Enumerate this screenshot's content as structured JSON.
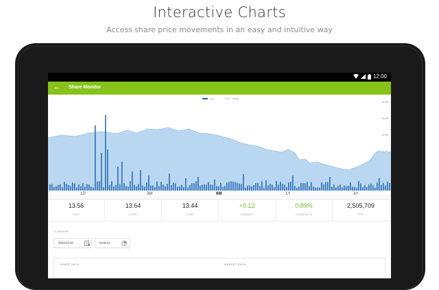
{
  "headline": "Interactive Charts",
  "subheadline": "Access share price movements in an easy and intuitive way",
  "status_bar": {
    "time": "12:00",
    "icons": [
      "wifi-icon",
      "signal-icon",
      "battery-icon"
    ]
  },
  "app_bar": {
    "title": "Share Monitor",
    "accent_color": "#86c21a"
  },
  "chart": {
    "legend": [
      "Vol",
      "Price"
    ],
    "y_ticks": [
      "14.00",
      "13.00",
      "12.00",
      "11.00",
      "10.00"
    ],
    "range_tabs": [
      "1D",
      "3M",
      "6M",
      "1Y",
      "3Y"
    ],
    "selected_range": "6M"
  },
  "stats": [
    {
      "value": "13.56",
      "label": "LAST",
      "positive": false
    },
    {
      "value": "13.64",
      "label": "HIGH",
      "positive": false
    },
    {
      "value": "13.44",
      "label": "LOW",
      "positive": false
    },
    {
      "value": "+0.12",
      "label": "CHANGE",
      "positive": true
    },
    {
      "value": "0.89%",
      "label": "CHANGE %",
      "positive": true
    },
    {
      "value": "2,505,709",
      "label": "VOL",
      "positive": false
    }
  ],
  "compare": {
    "label": "COMPARE",
    "buttons": [
      {
        "label": "WatchList",
        "icon": "watchlist-icon"
      },
      {
        "label": "Indices",
        "icon": "indices-icon"
      }
    ]
  },
  "sections": {
    "share_data": "SHARE DATA",
    "market_data": "MARKET DATA"
  }
}
